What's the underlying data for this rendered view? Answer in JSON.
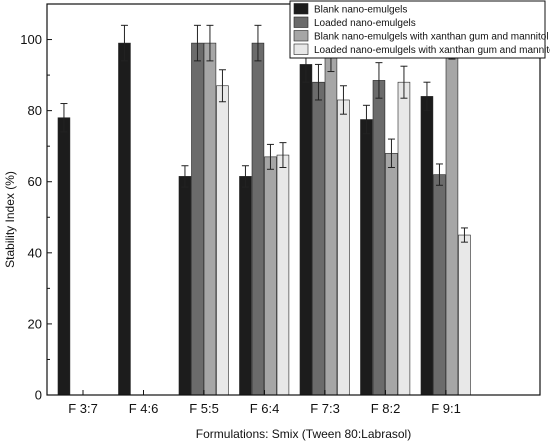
{
  "chart_data": {
    "type": "bar",
    "title": "",
    "xlabel": "Formulations: Smix (Tween 80:Labrasol)",
    "ylabel": "Stability Index (%)",
    "ylim": [
      0,
      110
    ],
    "yticks": [
      0,
      20,
      40,
      60,
      80,
      100
    ],
    "grid": false,
    "legend_position": "top-right",
    "categories": [
      "F 3:7",
      "F 4:6",
      "F 5:5",
      "F 6:4",
      "F 7:3",
      "F 8:2",
      "F 9:1"
    ],
    "series": [
      {
        "name": "Blank nano-emulgels",
        "color": "#1c1c1c",
        "values": [
          78,
          99,
          61.5,
          61.5,
          93,
          77.5,
          84
        ],
        "errors": [
          4,
          5,
          3,
          3,
          5,
          4,
          4
        ]
      },
      {
        "name": "Loaded nano-emulgels",
        "color": "#6b6b6b",
        "values": [
          0,
          0,
          99,
          99,
          88,
          88.5,
          62
        ],
        "errors": [
          0,
          0,
          5,
          5,
          5,
          5,
          3
        ]
      },
      {
        "name": "Blank nano-emulgels with xanthan gum and mannitol",
        "color": "#a6a6a6",
        "values": [
          0,
          0,
          99,
          67,
          96,
          68,
          99.5
        ],
        "errors": [
          0,
          0,
          5,
          3.5,
          5,
          4,
          5
        ]
      },
      {
        "name": "Loaded nano-emulgels with xanthan gum and mannitol",
        "color": "#e8e8e8",
        "values": [
          0,
          0,
          87,
          67.5,
          83,
          88,
          45
        ],
        "errors": [
          0,
          0,
          4.5,
          3.5,
          4,
          4.5,
          2
        ]
      }
    ]
  }
}
